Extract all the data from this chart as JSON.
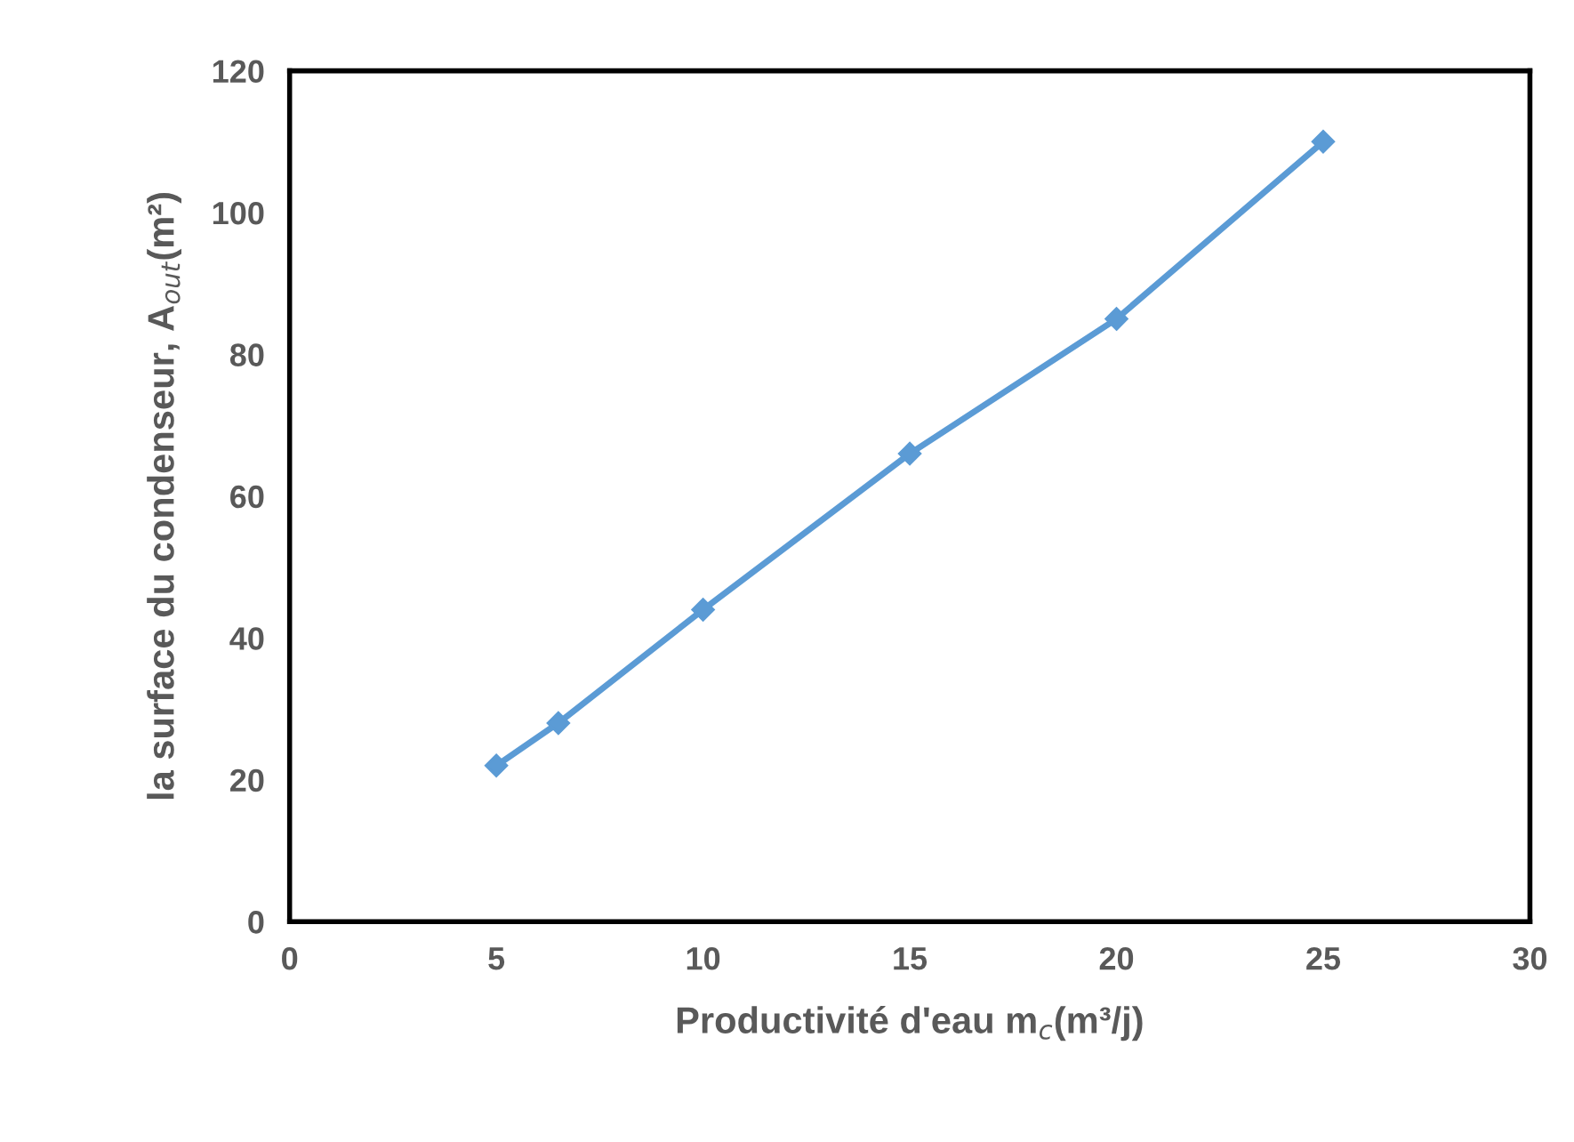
{
  "chart_data": {
    "type": "line",
    "xlabel": "Productivité d'eau m$_{c}$(m³/j)",
    "ylabel": "la surface du condenseur, A$_{out}$(m²)",
    "x": [
      5,
      6.5,
      10,
      15,
      20,
      25
    ],
    "series": [
      {
        "color": "#5b9bd5",
        "values": [
          22,
          28,
          44,
          66,
          85,
          110
        ]
      }
    ],
    "xlim": [
      0,
      30
    ],
    "xticks": [
      0,
      5,
      10,
      15,
      20,
      25,
      30
    ],
    "ylim": [
      0,
      120
    ],
    "yticks": [
      0,
      20,
      40,
      60,
      80,
      100,
      120
    ],
    "grid": false,
    "legend": false,
    "marker": "diamond",
    "line_style": "solid"
  }
}
